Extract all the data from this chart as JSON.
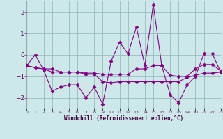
{
  "xlabel": "Windchill (Refroidissement éolien,°C)",
  "x": [
    0,
    1,
    2,
    3,
    4,
    5,
    6,
    7,
    8,
    9,
    10,
    11,
    12,
    13,
    14,
    15,
    16,
    17,
    18,
    19,
    20,
    21,
    22,
    23
  ],
  "line1": [
    -0.5,
    0.0,
    -0.7,
    -1.7,
    -1.5,
    -1.4,
    -1.4,
    -2.0,
    -1.5,
    -2.3,
    -0.3,
    0.6,
    0.05,
    1.3,
    -0.5,
    2.35,
    -0.5,
    -1.85,
    -2.25,
    -1.4,
    -1.0,
    0.05,
    0.05,
    -0.8
  ],
  "line2": [
    -0.5,
    -0.6,
    -0.65,
    -0.65,
    -0.8,
    -0.8,
    -0.8,
    -0.85,
    -0.85,
    -0.9,
    -0.9,
    -0.9,
    -0.9,
    -0.65,
    -0.65,
    -0.5,
    -0.5,
    -0.95,
    -1.0,
    -1.0,
    -0.65,
    -0.45,
    -0.45,
    -0.75
  ],
  "line3": [
    -0.5,
    -0.6,
    -0.65,
    -0.8,
    -0.8,
    -0.8,
    -0.8,
    -0.9,
    -0.9,
    -1.25,
    -1.3,
    -1.25,
    -1.25,
    -1.25,
    -1.25,
    -1.25,
    -1.25,
    -1.25,
    -1.25,
    -1.05,
    -0.95,
    -0.85,
    -0.85,
    -0.8
  ],
  "bg_color": "#cce8e8",
  "line_color": "#880088",
  "grid_color": "#99bbbb",
  "ylim": [
    -2.5,
    2.5
  ],
  "yticks": [
    -2,
    -1,
    0,
    1,
    2
  ],
  "xlim": [
    0,
    23
  ]
}
